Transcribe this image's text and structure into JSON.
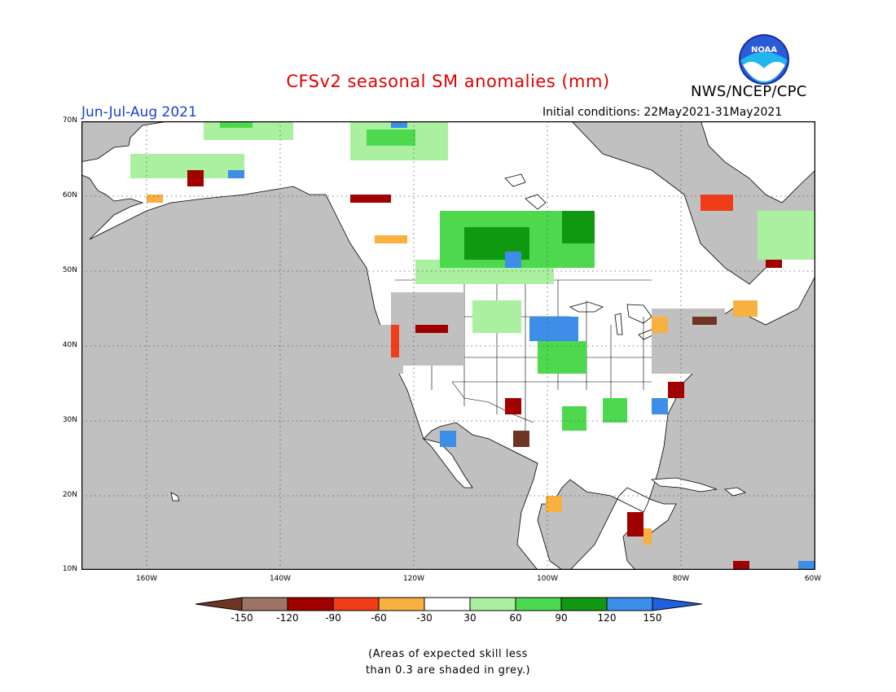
{
  "header": {
    "title": "CFSv2 seasonal SM anomalies (mm)",
    "agency": "NWS/NCEP/CPC",
    "season": "Jun-Jul-Aug 2021",
    "initial_conditions": "Initial conditions: 22May2021-31May2021",
    "logo_text": "NOAA"
  },
  "map": {
    "lon_range": [
      -173,
      -60
    ],
    "lat_range": [
      10,
      70
    ],
    "lat_labels": [
      "70N",
      "60N",
      "50N",
      "40N",
      "30N",
      "20N",
      "10N"
    ],
    "lon_labels": [
      "160W",
      "140W",
      "120W",
      "100W",
      "80W",
      "60W"
    ],
    "colors": {
      "ocean": "#c0c0c0",
      "land": "#ffffff",
      "low_skill": "#c0c0c0",
      "coast": "#000000"
    }
  },
  "colorbar": {
    "labels": [
      "-150",
      "-120",
      "-90",
      "-60",
      "-30",
      "30",
      "60",
      "90",
      "120",
      "150"
    ],
    "colors": [
      "#6e3524",
      "#9c7468",
      "#a00000",
      "#f03c18",
      "#f8b040",
      "#ffffff",
      "#aaf0a0",
      "#4ed84e",
      "#109810",
      "#3c8ee8",
      "#2060e0"
    ]
  },
  "note": {
    "line1": "(Areas of expected skill less",
    "line2": "than 0.3 are shaded in grey.)"
  }
}
